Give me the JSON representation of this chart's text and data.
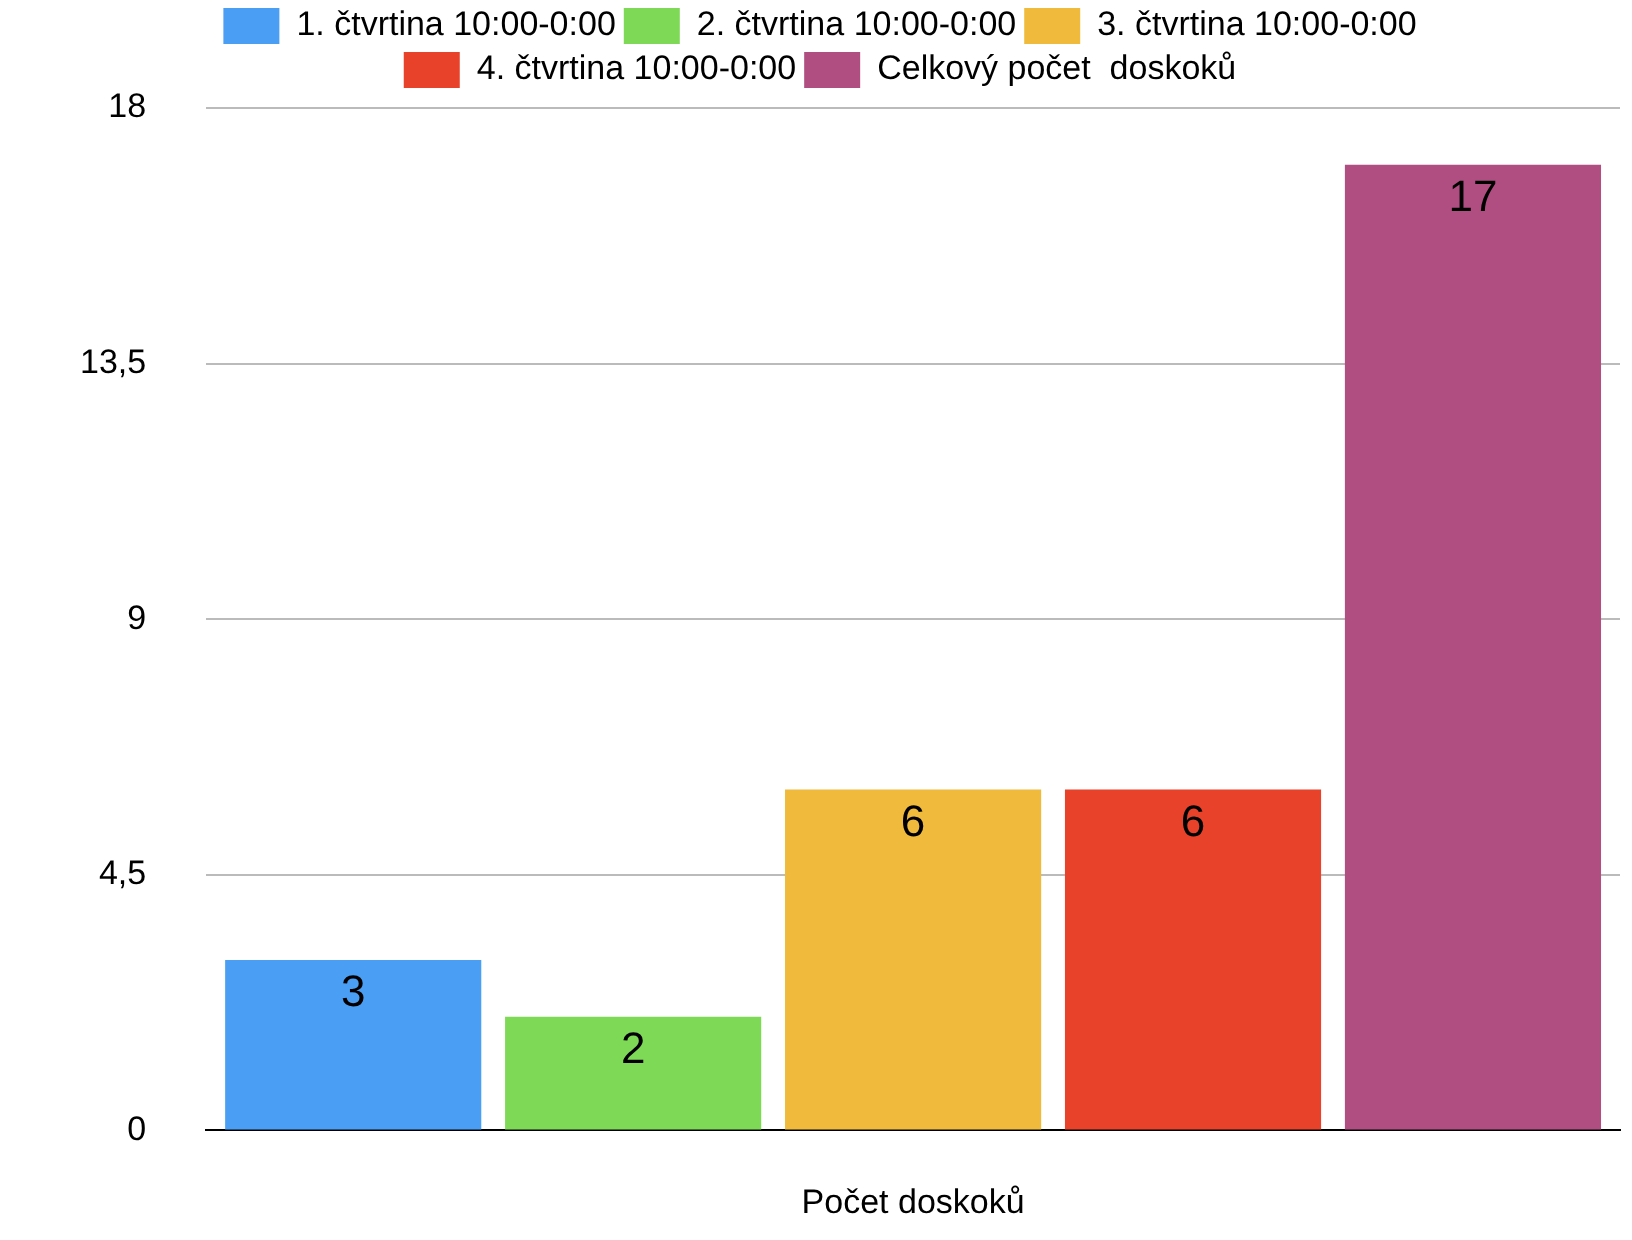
{
  "chart_data": {
    "type": "bar",
    "xlabel": "Počet doskoků",
    "categories": [
      null
    ],
    "series": [
      {
        "name": "1. čtvrtina 10:00-0:00",
        "color": "#4a9ff5",
        "values": [
          3
        ]
      },
      {
        "name": "2. čtvrtina 10:00-0:00",
        "color": "#7ed957",
        "values": [
          2
        ]
      },
      {
        "name": "3. čtvrtina 10:00-0:00",
        "color": "#f0bb3d",
        "values": [
          6
        ]
      },
      {
        "name": "4. čtvrtina 10:00-0:00",
        "color": "#e8422a",
        "values": [
          6
        ]
      },
      {
        "name": "Celkový počet  doskoků",
        "color": "#b04e82",
        "values": [
          17
        ]
      }
    ],
    "ylim": [
      0,
      18
    ],
    "yticks": [
      0,
      {
        "value": 4.5,
        "label": "4,5"
      },
      9,
      {
        "value": 13.5,
        "label": "13,5"
      },
      18
    ],
    "grid": "y",
    "legend": "top",
    "data_labels": true
  }
}
